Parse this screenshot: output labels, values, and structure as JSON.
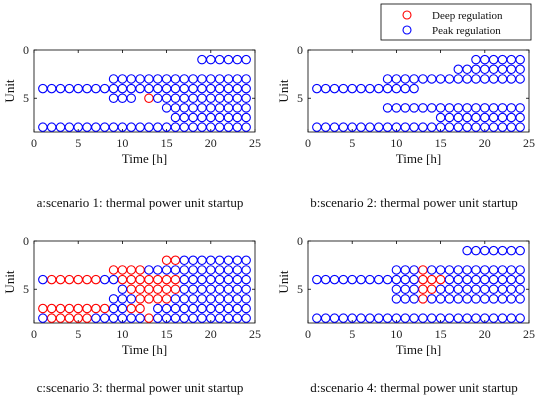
{
  "legend": {
    "entries": [
      {
        "label": "Deep regulation",
        "color": "#ff0000"
      },
      {
        "label": "Peak regulation",
        "color": "#0000ff"
      }
    ],
    "placement": "top-right"
  },
  "chart_data": [
    {
      "type": "scatter",
      "caption": "a:scenario 1: thermal power unit startup",
      "xlabel": "Time [h]",
      "ylabel": "Unit",
      "xlim": [
        0,
        25
      ],
      "ylim": [
        0,
        8.5
      ],
      "y_reversed": true,
      "xticks": [
        0,
        5,
        10,
        15,
        20,
        25
      ],
      "yticks": [
        0,
        5
      ],
      "grid": false,
      "series": [
        {
          "name": "Deep regulation",
          "color": "#ff0000",
          "rows": [
            {
              "unit": 5,
              "hours": [
                13
              ]
            }
          ]
        },
        {
          "name": "Peak regulation",
          "color": "#0000ff",
          "rows": [
            {
              "unit": 1,
              "hours": [
                19,
                20,
                21,
                22,
                23,
                24
              ]
            },
            {
              "unit": 3,
              "hours": [
                9,
                10,
                11,
                12,
                13,
                14,
                15,
                16,
                17,
                18,
                19,
                20,
                21,
                22,
                23,
                24
              ]
            },
            {
              "unit": 4,
              "hours": [
                1,
                2,
                3,
                4,
                5,
                6,
                7,
                8,
                9,
                10,
                11,
                12,
                13,
                14,
                15,
                16,
                17,
                18,
                19,
                20,
                21,
                22,
                23,
                24
              ]
            },
            {
              "unit": 5,
              "hours": [
                9,
                10,
                11,
                14,
                15,
                16,
                17,
                18,
                19,
                20,
                21,
                22,
                23,
                24
              ]
            },
            {
              "unit": 6,
              "hours": [
                15,
                16,
                17,
                18,
                19,
                20,
                21,
                22,
                23,
                24
              ]
            },
            {
              "unit": 7,
              "hours": [
                16,
                17,
                18,
                19,
                20,
                21,
                22,
                23,
                24
              ]
            },
            {
              "unit": 8,
              "hours": [
                1,
                2,
                3,
                4,
                5,
                6,
                7,
                8,
                9,
                10,
                11,
                12,
                13,
                14,
                15,
                16,
                17,
                18,
                19,
                20,
                21,
                22,
                23,
                24
              ]
            }
          ]
        }
      ]
    },
    {
      "type": "scatter",
      "caption": "b:scenario 2: thermal power unit startup",
      "xlabel": "Time [h]",
      "ylabel": "Unit",
      "xlim": [
        0,
        25
      ],
      "ylim": [
        0,
        8.5
      ],
      "y_reversed": true,
      "xticks": [
        0,
        5,
        10,
        15,
        20,
        25
      ],
      "yticks": [
        0,
        5
      ],
      "grid": false,
      "series": [
        {
          "name": "Deep regulation",
          "color": "#ff0000",
          "rows": []
        },
        {
          "name": "Peak regulation",
          "color": "#0000ff",
          "rows": [
            {
              "unit": 1,
              "hours": [
                19,
                20,
                21,
                22,
                23,
                24
              ]
            },
            {
              "unit": 2,
              "hours": [
                17,
                18,
                19,
                20,
                21,
                22,
                23,
                24
              ]
            },
            {
              "unit": 3,
              "hours": [
                9,
                10,
                11,
                12,
                13,
                14,
                15,
                16,
                17,
                18,
                19,
                20,
                21,
                22,
                23,
                24
              ]
            },
            {
              "unit": 4,
              "hours": [
                1,
                2,
                3,
                4,
                5,
                6,
                7,
                8,
                9,
                10,
                11,
                12
              ]
            },
            {
              "unit": 6,
              "hours": [
                9,
                10,
                11,
                12,
                13,
                14,
                15,
                16,
                17,
                18,
                19,
                20,
                21,
                22,
                23,
                24
              ]
            },
            {
              "unit": 7,
              "hours": [
                15,
                16,
                17,
                18,
                19,
                20,
                21,
                22,
                23,
                24
              ]
            },
            {
              "unit": 8,
              "hours": [
                1,
                2,
                3,
                4,
                5,
                6,
                7,
                8,
                9,
                10,
                11,
                12,
                13,
                14,
                15,
                16,
                17,
                18,
                19,
                20,
                21,
                22,
                23,
                24
              ]
            }
          ]
        }
      ]
    },
    {
      "type": "scatter",
      "caption": "c:scenario 3: thermal power unit startup",
      "xlabel": "Time [h]",
      "ylabel": "Unit",
      "xlim": [
        0,
        25
      ],
      "ylim": [
        0,
        8.5
      ],
      "y_reversed": true,
      "xticks": [
        0,
        5,
        10,
        15,
        20,
        25
      ],
      "yticks": [
        0,
        5
      ],
      "grid": false,
      "series": [
        {
          "name": "Deep regulation",
          "color": "#ff0000",
          "rows": [
            {
              "unit": 2,
              "hours": [
                15,
                16
              ]
            },
            {
              "unit": 3,
              "hours": [
                9,
                10,
                11,
                12
              ]
            },
            {
              "unit": 4,
              "hours": [
                2,
                3,
                4,
                5,
                6,
                7,
                10,
                11,
                12,
                13,
                14,
                15,
                16
              ]
            },
            {
              "unit": 5,
              "hours": [
                11,
                12,
                13,
                14,
                15,
                16
              ]
            },
            {
              "unit": 6,
              "hours": [
                12,
                13,
                14,
                15
              ]
            },
            {
              "unit": 7,
              "hours": [
                1,
                2,
                3,
                4,
                5,
                6,
                7,
                8,
                11,
                12
              ]
            },
            {
              "unit": 8,
              "hours": [
                2,
                3,
                4,
                5,
                6,
                13
              ]
            }
          ]
        },
        {
          "name": "Peak regulation",
          "color": "#0000ff",
          "rows": [
            {
              "unit": 2,
              "hours": [
                17,
                18,
                19,
                20,
                21,
                22,
                23,
                24
              ]
            },
            {
              "unit": 3,
              "hours": [
                13,
                14,
                15,
                16,
                17,
                18,
                19,
                20,
                21,
                22,
                23,
                24
              ]
            },
            {
              "unit": 4,
              "hours": [
                1,
                8,
                9,
                17,
                18,
                19,
                20,
                21,
                22,
                23,
                24
              ]
            },
            {
              "unit": 5,
              "hours": [
                10,
                17,
                18,
                19,
                20,
                21,
                22,
                23,
                24
              ]
            },
            {
              "unit": 6,
              "hours": [
                9,
                10,
                11,
                16,
                17,
                18,
                19,
                20,
                21,
                22,
                23,
                24
              ]
            },
            {
              "unit": 7,
              "hours": [
                9,
                10,
                14,
                15,
                16,
                17,
                18,
                19,
                20,
                21,
                22,
                23,
                24
              ]
            },
            {
              "unit": 8,
              "hours": [
                1,
                7,
                8,
                9,
                10,
                11,
                12,
                14,
                15,
                16,
                17,
                18,
                19,
                20,
                21,
                22,
                23,
                24
              ]
            }
          ]
        }
      ]
    },
    {
      "type": "scatter",
      "caption": "d:scenario 4: thermal power unit startup",
      "xlabel": "Time [h]",
      "ylabel": "Unit",
      "xlim": [
        0,
        25
      ],
      "ylim": [
        0,
        8.5
      ],
      "y_reversed": true,
      "xticks": [
        0,
        5,
        10,
        15,
        20,
        25
      ],
      "yticks": [
        0,
        5
      ],
      "grid": false,
      "series": [
        {
          "name": "Deep regulation",
          "color": "#ff0000",
          "rows": [
            {
              "unit": 3,
              "hours": [
                13
              ]
            },
            {
              "unit": 4,
              "hours": [
                13,
                14,
                15
              ]
            },
            {
              "unit": 5,
              "hours": [
                13,
                14
              ]
            },
            {
              "unit": 6,
              "hours": [
                13
              ]
            }
          ]
        },
        {
          "name": "Peak regulation",
          "color": "#0000ff",
          "rows": [
            {
              "unit": 1,
              "hours": [
                18,
                19,
                20,
                21,
                22,
                23,
                24
              ]
            },
            {
              "unit": 3,
              "hours": [
                10,
                11,
                12,
                14,
                15,
                16,
                17,
                18,
                19,
                20,
                21,
                22,
                23,
                24
              ]
            },
            {
              "unit": 4,
              "hours": [
                1,
                2,
                3,
                4,
                5,
                6,
                7,
                8,
                9,
                10,
                11,
                12,
                16,
                17,
                18,
                19,
                20,
                21,
                22,
                23,
                24
              ]
            },
            {
              "unit": 5,
              "hours": [
                10,
                11,
                12,
                15,
                16,
                17,
                18,
                19,
                20,
                21,
                22,
                23,
                24
              ]
            },
            {
              "unit": 6,
              "hours": [
                10,
                11,
                12,
                14,
                15,
                16,
                17,
                18,
                19,
                20,
                21,
                22,
                23,
                24
              ]
            },
            {
              "unit": 8,
              "hours": [
                1,
                2,
                3,
                4,
                5,
                6,
                7,
                8,
                9,
                10,
                11,
                12,
                13,
                14,
                15,
                16,
                17,
                18,
                19,
                20,
                21,
                22,
                23,
                24
              ]
            }
          ]
        }
      ]
    }
  ]
}
